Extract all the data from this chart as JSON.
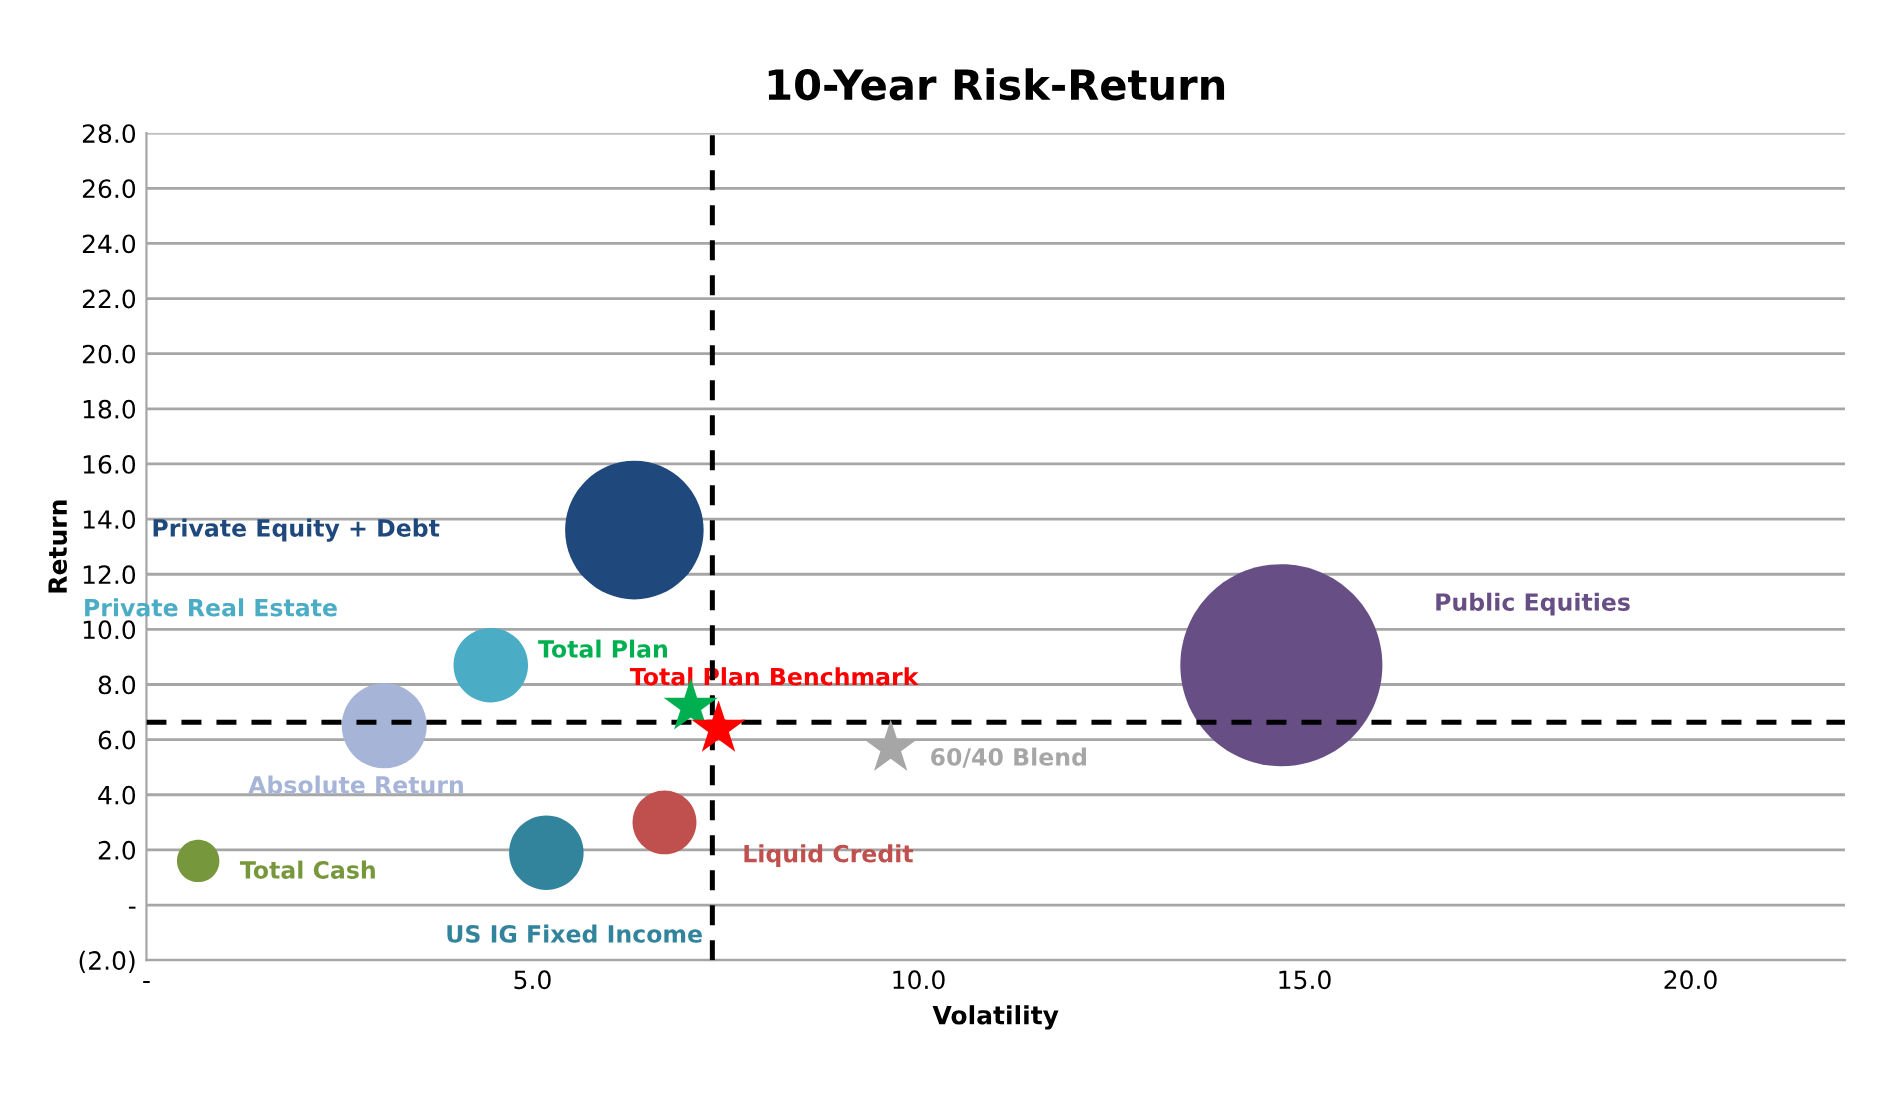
{
  "chart_data": {
    "type": "bubble",
    "title": "10-Year Risk-Return",
    "xlabel": "Volatility",
    "ylabel": "Return",
    "xlim": [
      0,
      22
    ],
    "xticks": [
      {
        "value": 0,
        "label": "-"
      },
      {
        "value": 5,
        "label": "5.0"
      },
      {
        "value": 10,
        "label": "10.0"
      },
      {
        "value": 15,
        "label": "15.0"
      },
      {
        "value": 20,
        "label": "20.0"
      }
    ],
    "ylim": [
      -2,
      28
    ],
    "yticks": [
      {
        "value": -2,
        "label": "(2.0)"
      },
      {
        "value": 0,
        "label": "-"
      },
      {
        "value": 2,
        "label": "2.0"
      },
      {
        "value": 4,
        "label": "4.0"
      },
      {
        "value": 6,
        "label": "6.0"
      },
      {
        "value": 8,
        "label": "8.0"
      },
      {
        "value": 10,
        "label": "10.0"
      },
      {
        "value": 12,
        "label": "12.0"
      },
      {
        "value": 14,
        "label": "14.0"
      },
      {
        "value": 16,
        "label": "16.0"
      },
      {
        "value": 18,
        "label": "18.0"
      },
      {
        "value": 20,
        "label": "20.0"
      },
      {
        "value": 22,
        "label": "22.0"
      },
      {
        "value": 24,
        "label": "24.0"
      },
      {
        "value": 26,
        "label": "26.0"
      },
      {
        "value": 28,
        "label": "28.0"
      }
    ],
    "grid": "y",
    "legend": false,
    "ref_lines": [
      {
        "axis": "x",
        "value": 7.33,
        "color": "#000000",
        "line_style": "dashed"
      },
      {
        "axis": "y",
        "value": 6.63,
        "color": "#000000",
        "line_style": "dashed"
      }
    ],
    "series": [
      {
        "name": "Private Equity + Debt",
        "color": "#1f497d",
        "x": [
          6.32
        ],
        "values": [
          13.6
        ],
        "sizes": [
          0.47
        ]
      },
      {
        "name": "Private Real Estate",
        "color": "#4bacc6",
        "x": [
          4.46
        ],
        "values": [
          8.7
        ],
        "sizes": [
          0.136
        ]
      },
      {
        "name": "Absolute Return",
        "color": "#a6b5d7",
        "x": [
          3.08
        ],
        "values": [
          6.5
        ],
        "sizes": [
          0.177
        ]
      },
      {
        "name": "Total Cash",
        "color": "#77973c",
        "x": [
          0.67
        ],
        "values": [
          1.6
        ],
        "sizes": [
          0.044
        ]
      },
      {
        "name": "US IG Fixed Income",
        "color": "#31849b",
        "x": [
          5.18
        ],
        "values": [
          1.9
        ],
        "sizes": [
          0.136
        ]
      },
      {
        "name": "Liquid Credit",
        "color": "#c0504d",
        "x": [
          6.71
        ],
        "values": [
          3.0
        ],
        "sizes": [
          0.1
        ]
      },
      {
        "name": "Public Equities",
        "color": "#674f86",
        "x": [
          14.7
        ],
        "values": [
          8.7
        ],
        "sizes": [
          1
        ]
      },
      {
        "name": "Total Plan",
        "type": "scatter",
        "marker": "star",
        "color": "#00b050",
        "x": [
          7.05
        ],
        "values": [
          7.2
        ]
      },
      {
        "name": "Total Plan Benchmark",
        "type": "scatter",
        "marker": "star",
        "color": "#ff0000",
        "x": [
          7.41
        ],
        "values": [
          6.4
        ]
      },
      {
        "name": "60/40 Blend",
        "type": "scatter",
        "marker": "star",
        "color": "#a6a6a6",
        "x": [
          9.64
        ],
        "values": [
          5.7
        ]
      }
    ]
  }
}
